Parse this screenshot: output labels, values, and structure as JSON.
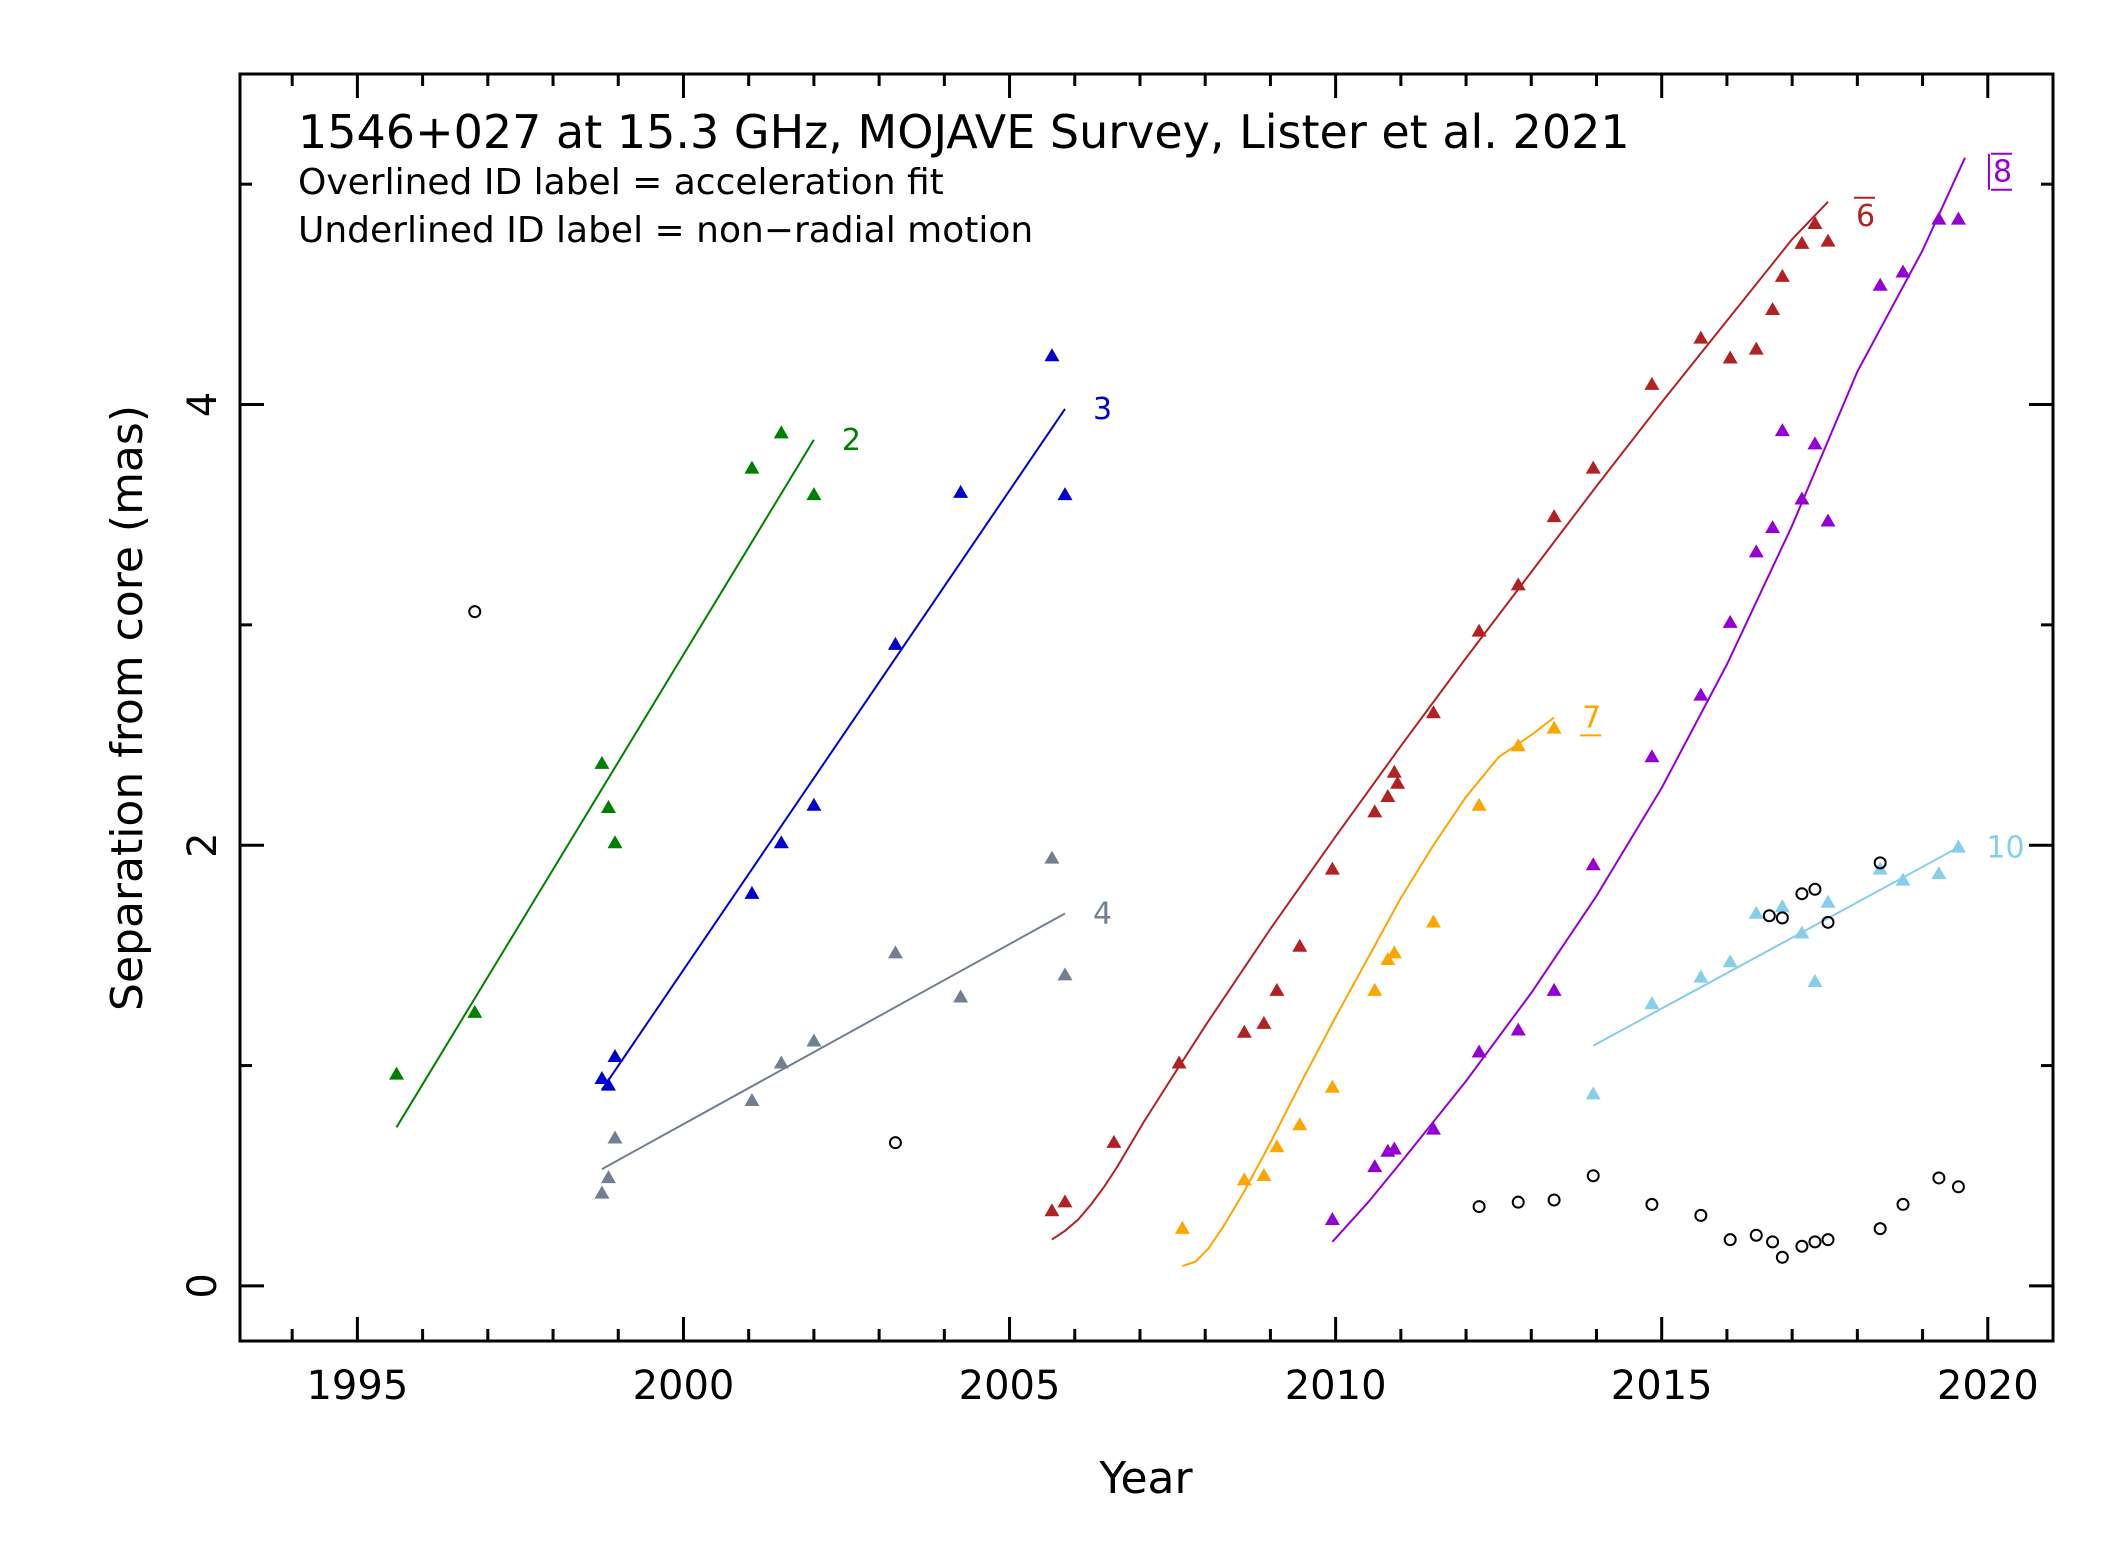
{
  "chart_data": {
    "type": "scatter",
    "title": "1546+027 at 15.3 GHz, MOJAVE Survey, Lister et al. 2021",
    "subtitle_lines": [
      "Overlined ID label = acceleration fit",
      "Underlined ID label = non−radial motion"
    ],
    "xlabel": "Year",
    "ylabel": "Separation from core (mas)",
    "xlim": [
      1993.2,
      2021.0
    ],
    "ylim": [
      -0.25,
      5.5
    ],
    "x_ticks": [
      1995,
      2000,
      2005,
      2010,
      2015,
      2020
    ],
    "y_ticks": [
      0,
      2,
      4
    ],
    "x_minor_step": 1,
    "y_minor_step": 1,
    "grid": false,
    "series": [
      {
        "name": "2",
        "color": "#008000",
        "marker": "triangle",
        "label_decoration": "none",
        "points": [
          [
            1995.6,
            0.96
          ],
          [
            1996.8,
            1.24
          ],
          [
            1998.75,
            2.37
          ],
          [
            1998.85,
            2.17
          ],
          [
            1998.95,
            2.01
          ],
          [
            2001.05,
            3.71
          ],
          [
            2001.5,
            3.87
          ],
          [
            2002.0,
            3.59
          ]
        ],
        "fit": [
          [
            1995.6,
            0.72
          ],
          [
            2002.0,
            3.84
          ]
        ]
      },
      {
        "name": "3",
        "color": "#0000cc",
        "marker": "triangle",
        "label_decoration": "none",
        "points": [
          [
            1998.75,
            0.94
          ],
          [
            1998.85,
            0.91
          ],
          [
            1998.95,
            1.04
          ],
          [
            2001.05,
            1.78
          ],
          [
            2001.5,
            2.01
          ],
          [
            2002.0,
            2.18
          ],
          [
            2003.25,
            2.91
          ],
          [
            2004.25,
            3.6
          ],
          [
            2005.65,
            4.22
          ],
          [
            2005.85,
            3.59
          ]
        ],
        "fit": [
          [
            1998.75,
            0.89
          ],
          [
            2005.85,
            3.98
          ]
        ]
      },
      {
        "name": "4",
        "color": "#708090",
        "marker": "triangle",
        "label_decoration": "none",
        "points": [
          [
            1998.75,
            0.42
          ],
          [
            1998.85,
            0.49
          ],
          [
            1998.95,
            0.67
          ],
          [
            2001.05,
            0.84
          ],
          [
            2001.5,
            1.01
          ],
          [
            2002.0,
            1.11
          ],
          [
            2003.25,
            1.51
          ],
          [
            2004.25,
            1.31
          ],
          [
            2005.65,
            1.94
          ],
          [
            2005.85,
            1.41
          ]
        ],
        "fit": [
          [
            1998.75,
            0.53
          ],
          [
            2005.85,
            1.69
          ]
        ]
      },
      {
        "name": "6",
        "color": "#b22222",
        "marker": "triangle",
        "label_decoration": "overline",
        "points": [
          [
            2005.65,
            0.34
          ],
          [
            2005.85,
            0.38
          ],
          [
            2006.6,
            0.65
          ],
          [
            2007.6,
            1.01
          ],
          [
            2008.6,
            1.15
          ],
          [
            2008.9,
            1.19
          ],
          [
            2009.1,
            1.34
          ],
          [
            2009.45,
            1.54
          ],
          [
            2009.95,
            1.89
          ],
          [
            2010.6,
            2.15
          ],
          [
            2010.8,
            2.22
          ],
          [
            2010.9,
            2.33
          ],
          [
            2010.95,
            2.28
          ],
          [
            2011.5,
            2.6
          ],
          [
            2012.2,
            2.97
          ],
          [
            2012.8,
            3.18
          ],
          [
            2013.35,
            3.49
          ],
          [
            2013.95,
            3.71
          ],
          [
            2014.85,
            4.09
          ],
          [
            2015.6,
            4.3
          ],
          [
            2016.05,
            4.21
          ],
          [
            2016.45,
            4.25
          ],
          [
            2016.7,
            4.43
          ],
          [
            2016.85,
            4.58
          ],
          [
            2017.15,
            4.73
          ],
          [
            2017.35,
            4.82
          ],
          [
            2017.55,
            4.74
          ]
        ],
        "fit": [
          [
            2005.65,
            0.21
          ],
          [
            2005.85,
            0.25
          ],
          [
            2006.05,
            0.3
          ],
          [
            2006.25,
            0.37
          ],
          [
            2006.45,
            0.45
          ],
          [
            2006.65,
            0.54
          ],
          [
            2007.05,
            0.74
          ],
          [
            2007.5,
            0.95
          ],
          [
            2008.0,
            1.18
          ],
          [
            2009.0,
            1.62
          ],
          [
            2010.0,
            2.04
          ],
          [
            2011.0,
            2.45
          ],
          [
            2012.0,
            2.85
          ],
          [
            2013.0,
            3.24
          ],
          [
            2014.0,
            3.63
          ],
          [
            2015.0,
            4.01
          ],
          [
            2016.0,
            4.38
          ],
          [
            2017.0,
            4.75
          ],
          [
            2017.55,
            4.92
          ]
        ]
      },
      {
        "name": "7",
        "color": "#ffa500",
        "marker": "triangle",
        "label_decoration": "underline",
        "points": [
          [
            2007.65,
            0.26
          ],
          [
            2008.6,
            0.48
          ],
          [
            2008.9,
            0.5
          ],
          [
            2009.1,
            0.63
          ],
          [
            2009.45,
            0.73
          ],
          [
            2009.95,
            0.9
          ],
          [
            2010.6,
            1.34
          ],
          [
            2010.8,
            1.48
          ],
          [
            2010.9,
            1.51
          ],
          [
            2011.5,
            1.65
          ],
          [
            2012.2,
            2.18
          ],
          [
            2012.8,
            2.45
          ],
          [
            2013.35,
            2.53
          ]
        ],
        "fit": [
          [
            2007.65,
            0.09
          ],
          [
            2007.85,
            0.11
          ],
          [
            2008.05,
            0.17
          ],
          [
            2008.3,
            0.28
          ],
          [
            2008.6,
            0.43
          ],
          [
            2009.0,
            0.65
          ],
          [
            2009.5,
            0.94
          ],
          [
            2010.0,
            1.22
          ],
          [
            2010.5,
            1.49
          ],
          [
            2011.0,
            1.76
          ],
          [
            2011.5,
            2.0
          ],
          [
            2012.0,
            2.22
          ],
          [
            2012.5,
            2.4
          ],
          [
            2013.0,
            2.5
          ],
          [
            2013.35,
            2.58
          ]
        ]
      },
      {
        "name": "8",
        "color": "#9400d3",
        "marker": "triangle",
        "label_decoration": "overline-underline-bar",
        "points": [
          [
            2009.95,
            0.3
          ],
          [
            2010.6,
            0.54
          ],
          [
            2010.8,
            0.61
          ],
          [
            2010.9,
            0.62
          ],
          [
            2011.5,
            0.71
          ],
          [
            2012.2,
            1.06
          ],
          [
            2012.8,
            1.16
          ],
          [
            2013.35,
            1.34
          ],
          [
            2013.95,
            1.91
          ],
          [
            2014.85,
            2.4
          ],
          [
            2015.6,
            2.68
          ],
          [
            2016.05,
            3.01
          ],
          [
            2016.45,
            3.33
          ],
          [
            2016.7,
            3.44
          ],
          [
            2016.85,
            3.88
          ],
          [
            2017.15,
            3.57
          ],
          [
            2017.35,
            3.82
          ],
          [
            2017.55,
            3.47
          ],
          [
            2018.35,
            4.54
          ],
          [
            2018.7,
            4.6
          ],
          [
            2019.25,
            4.84
          ],
          [
            2019.55,
            4.84
          ]
        ],
        "fit": [
          [
            2009.95,
            0.2
          ],
          [
            2010.5,
            0.38
          ],
          [
            2011.0,
            0.56
          ],
          [
            2012.0,
            0.93
          ],
          [
            2013.0,
            1.33
          ],
          [
            2014.0,
            1.77
          ],
          [
            2015.0,
            2.26
          ],
          [
            2016.0,
            2.82
          ],
          [
            2017.0,
            3.45
          ],
          [
            2018.0,
            4.15
          ],
          [
            2019.0,
            4.7
          ],
          [
            2019.65,
            5.12
          ]
        ]
      },
      {
        "name": "10",
        "color": "#87ceeb",
        "marker": "triangle",
        "label_decoration": "none",
        "points": [
          [
            2013.95,
            0.87
          ],
          [
            2014.85,
            1.28
          ],
          [
            2015.6,
            1.4
          ],
          [
            2016.05,
            1.47
          ],
          [
            2016.45,
            1.69
          ],
          [
            2016.85,
            1.72
          ],
          [
            2017.15,
            1.6
          ],
          [
            2017.35,
            1.38
          ],
          [
            2017.55,
            1.74
          ],
          [
            2018.35,
            1.89
          ],
          [
            2018.7,
            1.84
          ],
          [
            2019.25,
            1.87
          ],
          [
            2019.55,
            1.99
          ]
        ],
        "fit": [
          [
            2013.95,
            1.09
          ],
          [
            2019.55,
            1.99
          ]
        ]
      },
      {
        "name": "",
        "color": "#000000",
        "marker": "circle",
        "label_decoration": "none",
        "points": [
          [
            1996.8,
            3.06
          ],
          [
            2003.25,
            0.65
          ],
          [
            2012.2,
            0.36
          ],
          [
            2012.8,
            0.38
          ],
          [
            2013.35,
            0.39
          ],
          [
            2013.95,
            0.5
          ],
          [
            2014.85,
            0.37
          ],
          [
            2015.6,
            0.32
          ],
          [
            2016.05,
            0.21
          ],
          [
            2016.45,
            0.23
          ],
          [
            2016.7,
            0.2
          ],
          [
            2016.85,
            0.13
          ],
          [
            2017.15,
            0.18
          ],
          [
            2017.35,
            0.2
          ],
          [
            2017.55,
            0.21
          ],
          [
            2018.35,
            0.26
          ],
          [
            2018.7,
            0.37
          ],
          [
            2019.25,
            0.49
          ],
          [
            2019.55,
            0.45
          ],
          [
            2016.65,
            1.68
          ],
          [
            2016.85,
            1.67
          ],
          [
            2017.15,
            1.78
          ],
          [
            2017.35,
            1.8
          ],
          [
            2017.55,
            1.65
          ],
          [
            2018.35,
            1.92
          ]
        ],
        "fit": []
      }
    ]
  }
}
